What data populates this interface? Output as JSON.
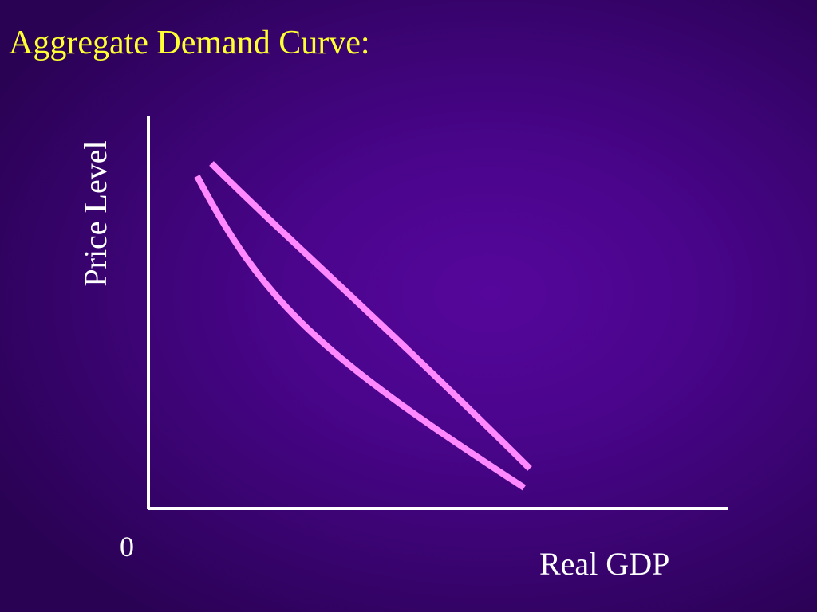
{
  "slide": {
    "title": "Aggregate Demand Curve:",
    "title_color": "#ffff33"
  },
  "diagram": {
    "y_axis_label": "Price Level",
    "x_axis_label": "Real GDP",
    "origin_label": "0",
    "axis_color": "#ffffff",
    "curve_color": "#ff88ff",
    "curves": [
      "straight-line",
      "convex-curve"
    ]
  }
}
